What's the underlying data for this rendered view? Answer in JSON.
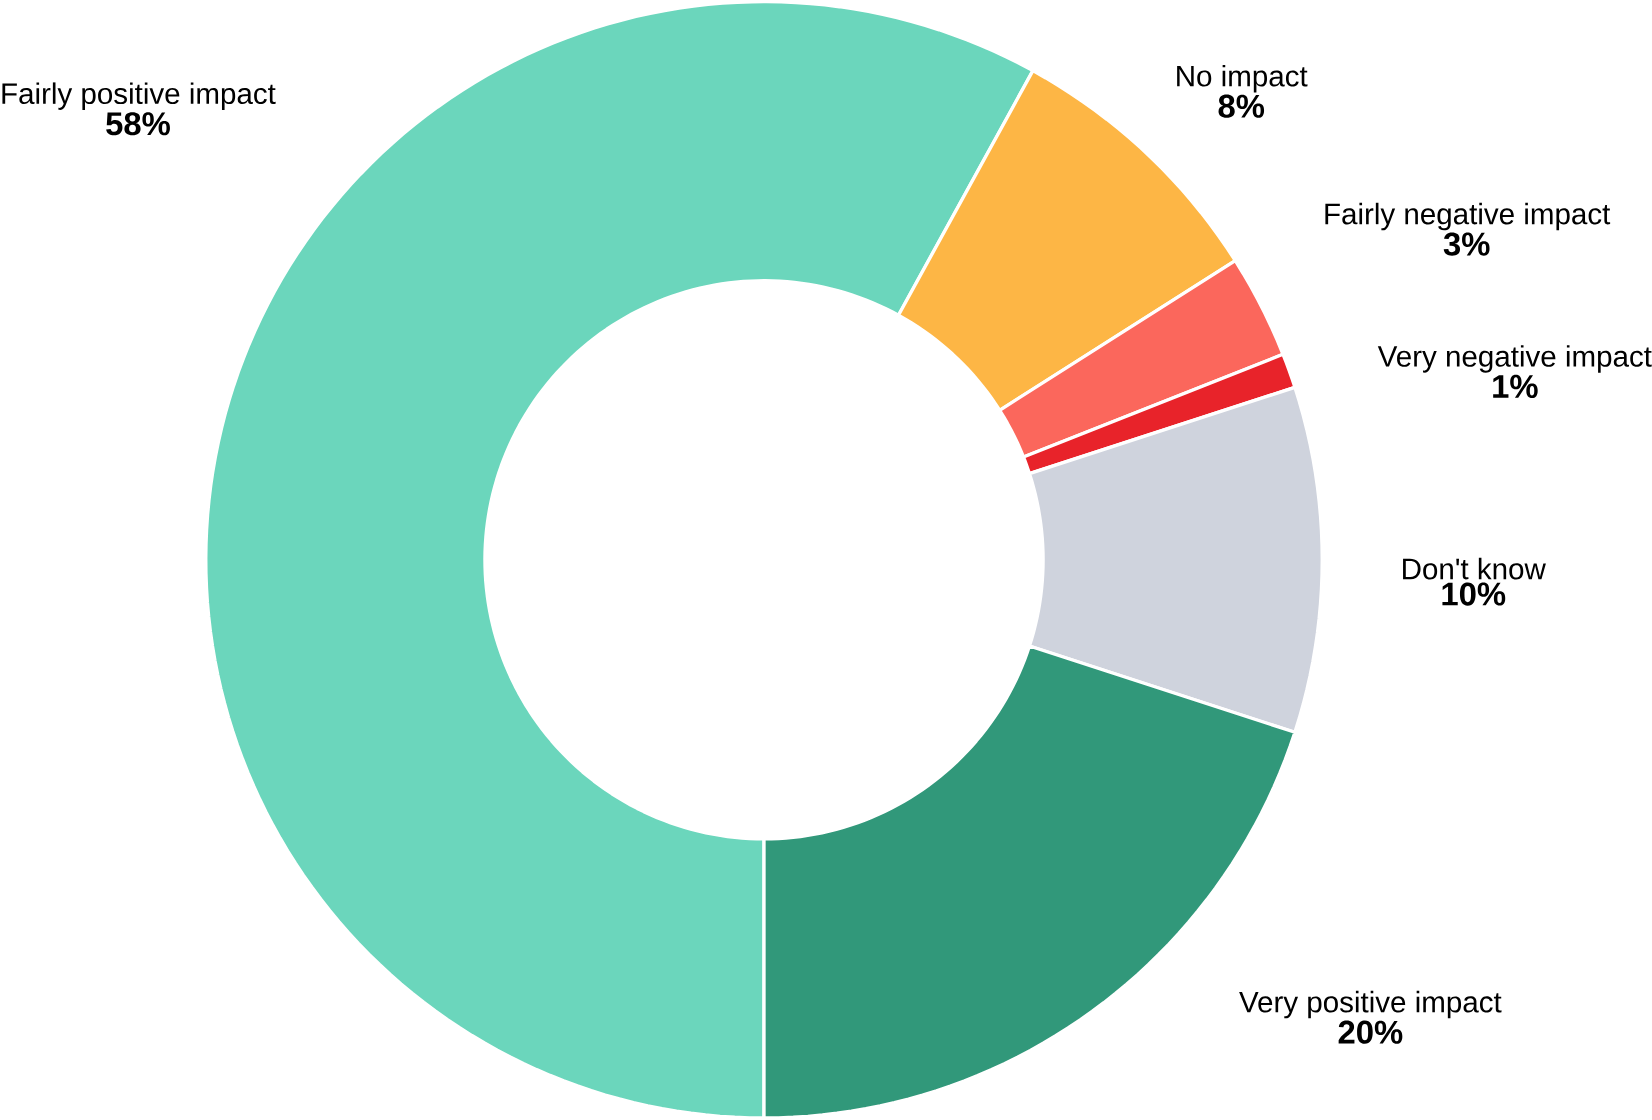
{
  "chart_data": {
    "type": "donut",
    "categories": [
      "Fairly positive impact",
      "No impact",
      "Fairly negative impact",
      "Very negative impact",
      "Don't know",
      "Very positive impact"
    ],
    "values": [
      58,
      8,
      3,
      1,
      10,
      20
    ],
    "value_labels": [
      "58%",
      "8%",
      "3%",
      "1%",
      "10%",
      "20%"
    ],
    "colors": [
      "#6bd6bc",
      "#fdb645",
      "#fb675c",
      "#e8232a",
      "#cfd3dd",
      "#31987a"
    ]
  }
}
